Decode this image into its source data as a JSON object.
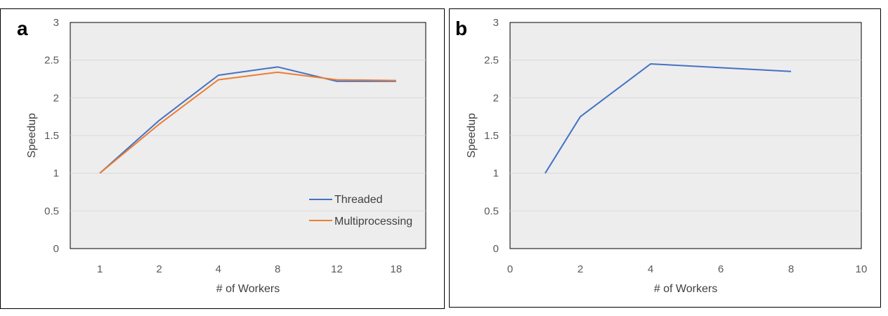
{
  "chart_data": [
    {
      "panel_label": "a",
      "type": "line",
      "x_axis_type": "category",
      "categories": [
        "1",
        "2",
        "4",
        "8",
        "12",
        "18"
      ],
      "series": [
        {
          "name": "Threaded",
          "color": "#4472C4",
          "values": [
            1.0,
            1.7,
            2.3,
            2.41,
            2.22,
            2.22
          ]
        },
        {
          "name": "Multiprocessing",
          "color": "#ED7D31",
          "values": [
            1.0,
            1.65,
            2.24,
            2.34,
            2.24,
            2.23
          ]
        }
      ],
      "title": "",
      "xlabel": "# of Workers",
      "ylabel": "Speedup",
      "ylim": [
        0,
        3
      ],
      "yticks": [
        "0",
        "0.5",
        "1",
        "1.5",
        "2",
        "2.5",
        "3"
      ],
      "grid": true,
      "legend": "bottom-right",
      "background": "#EDEDED"
    },
    {
      "panel_label": "b",
      "type": "line",
      "x_axis_type": "numeric",
      "xlim": [
        0,
        10
      ],
      "xticks": [
        "0",
        "2",
        "4",
        "6",
        "8",
        "10"
      ],
      "series": [
        {
          "color": "#4472C4",
          "x": [
            1,
            2,
            4,
            8
          ],
          "y": [
            1.0,
            1.75,
            2.45,
            2.35
          ]
        }
      ],
      "title": "",
      "xlabel": "# of Workers",
      "ylabel": "Speedup",
      "ylim": [
        0,
        3
      ],
      "yticks": [
        "0",
        "0.5",
        "1",
        "1.5",
        "2",
        "2.5",
        "3"
      ],
      "grid": true,
      "legend": "none",
      "background": "#EDEDED"
    }
  ]
}
